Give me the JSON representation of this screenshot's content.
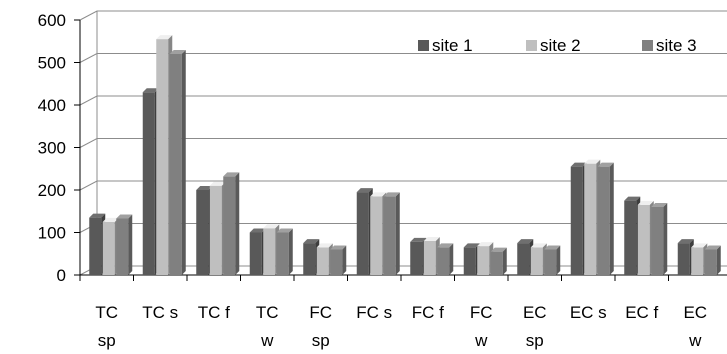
{
  "chart_data": {
    "type": "bar",
    "style": "3d-clustered-column",
    "categories": [
      [
        "TC",
        "sp"
      ],
      [
        "TC s"
      ],
      [
        "TC f"
      ],
      [
        "TC",
        "w"
      ],
      [
        "FC",
        "sp"
      ],
      [
        "FC s"
      ],
      [
        "FC f"
      ],
      [
        "FC",
        "w"
      ],
      [
        "EC",
        "sp"
      ],
      [
        "EC s"
      ],
      [
        "EC f"
      ],
      [
        "EC",
        "w"
      ]
    ],
    "series": [
      {
        "name": "site 1",
        "color": "#595959",
        "values": [
          135,
          430,
          200,
          100,
          75,
          195,
          78,
          65,
          75,
          255,
          175,
          75
        ]
      },
      {
        "name": "site 2",
        "color": "#bfbfbf",
        "values": [
          125,
          555,
          210,
          110,
          65,
          185,
          80,
          68,
          65,
          262,
          165,
          65
        ]
      },
      {
        "name": "site 3",
        "color": "#808080",
        "values": [
          133,
          520,
          232,
          100,
          60,
          185,
          65,
          55,
          60,
          255,
          160,
          60
        ]
      }
    ],
    "ylim": [
      0,
      600
    ],
    "yticks": [
      0,
      100,
      200,
      300,
      400,
      500,
      600
    ],
    "grid": true,
    "legend": "top-right",
    "title": "",
    "xlabel": "",
    "ylabel": ""
  }
}
